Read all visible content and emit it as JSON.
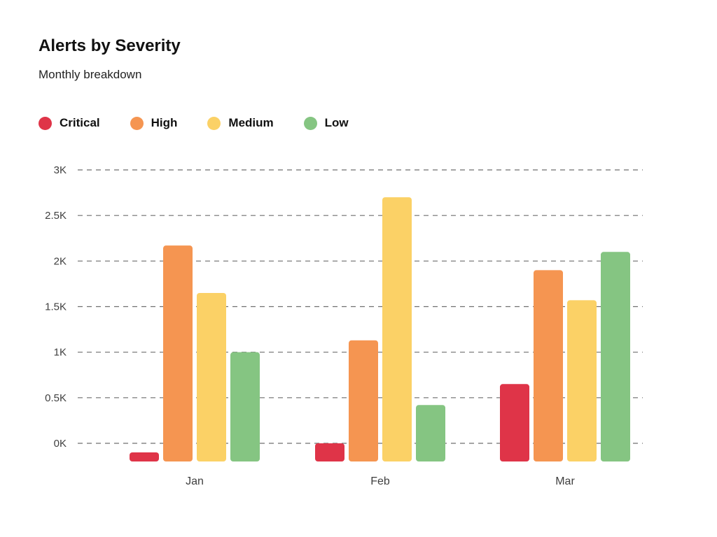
{
  "chart_data": {
    "type": "bar",
    "title": "Alerts by Severity",
    "subtitle": "Monthly breakdown",
    "xlabel": "",
    "ylabel": "",
    "categories": [
      "Jan",
      "Feb",
      "Mar"
    ],
    "y_ticks": [
      {
        "value": 0,
        "label": "0K"
      },
      {
        "value": 500,
        "label": "0.5K"
      },
      {
        "value": 1000,
        "label": "1K"
      },
      {
        "value": 1500,
        "label": "1.5K"
      },
      {
        "value": 2000,
        "label": "2K"
      },
      {
        "value": 2500,
        "label": "2.5K"
      },
      {
        "value": 3000,
        "label": "3K"
      }
    ],
    "ylim": [
      -100,
      3000
    ],
    "grid": true,
    "legend_position": "top-left",
    "series": [
      {
        "name": "Critical",
        "color": "#df3448",
        "values": [
          -50,
          0,
          650
        ]
      },
      {
        "name": "High",
        "color": "#f59551",
        "values": [
          2170,
          1130,
          1900
        ]
      },
      {
        "name": "Medium",
        "color": "#fbd166",
        "values": [
          1650,
          2700,
          1570
        ]
      },
      {
        "name": "Low",
        "color": "#85c582",
        "values": [
          1000,
          420,
          2100
        ]
      }
    ]
  },
  "colors": {
    "grid": "#6f6f6f",
    "axis_text": "#3f3f3f"
  }
}
